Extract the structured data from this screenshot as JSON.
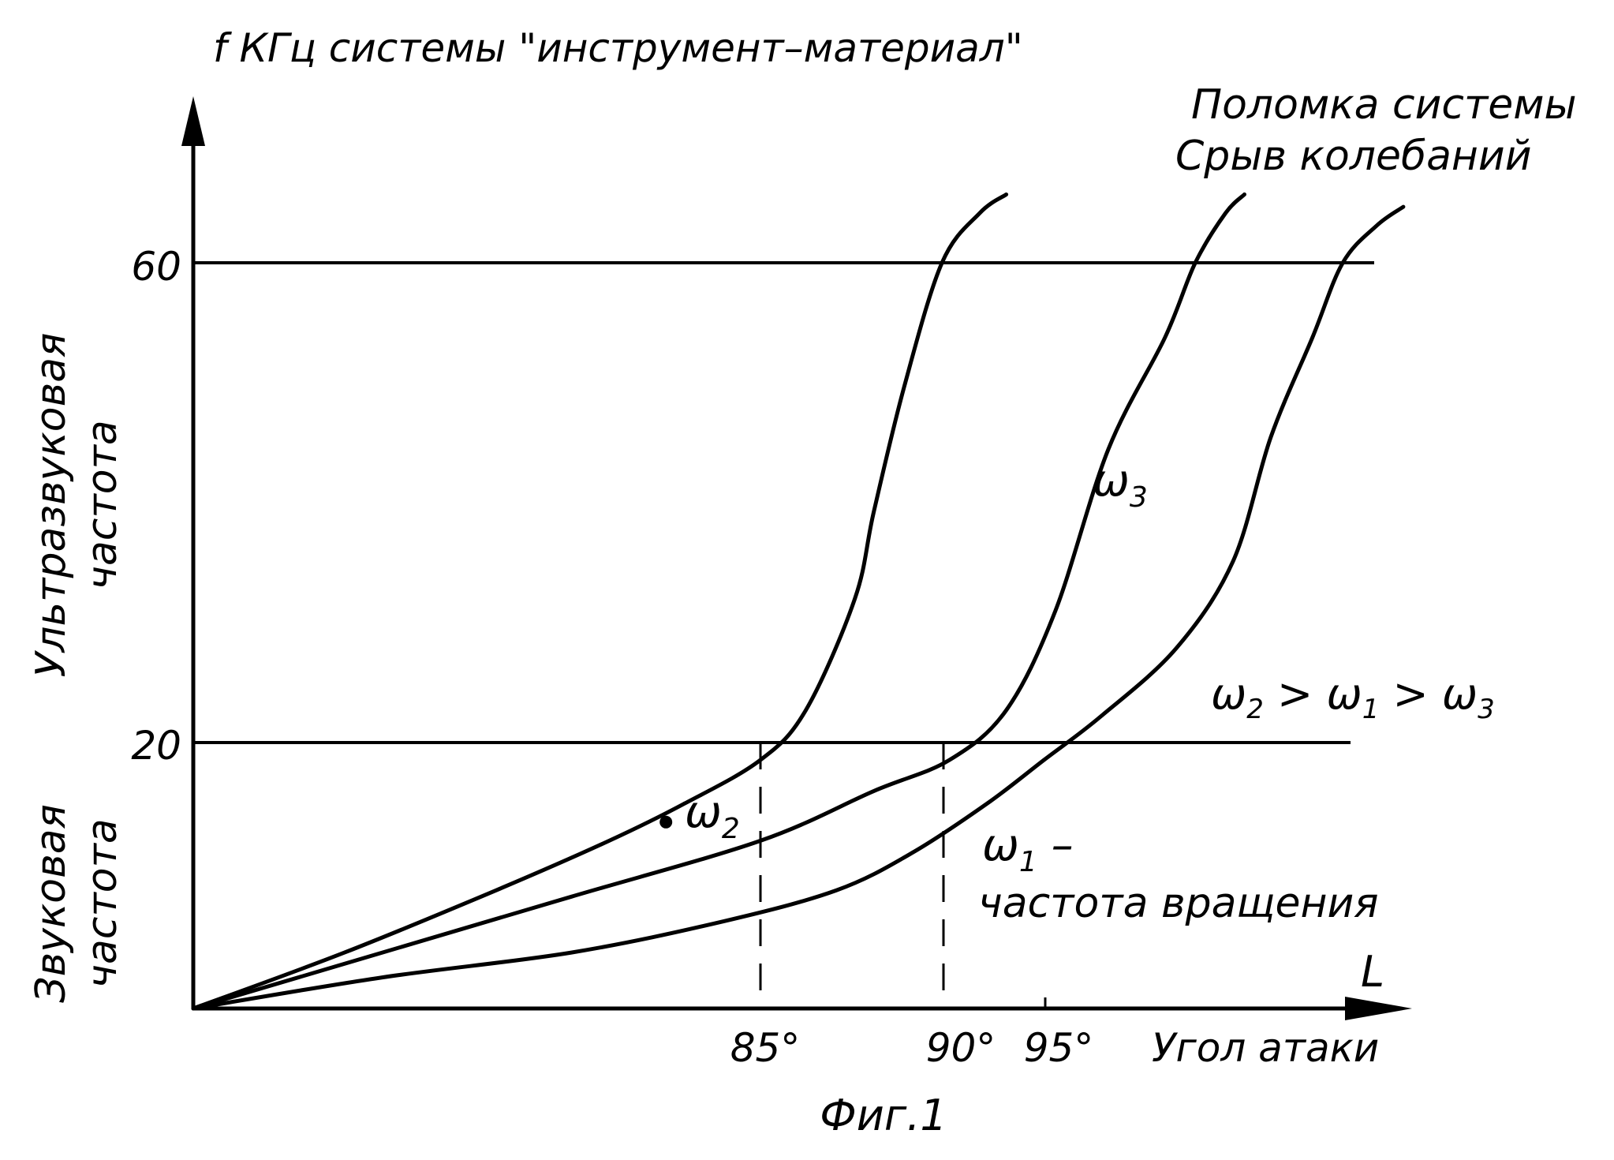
{
  "chart_data": {
    "type": "line",
    "title": "f  КГц системы \"инструмент–материал\"",
    "ylabel_symbol": "f",
    "xlabel": "Угол атаки",
    "xsymbol": "L",
    "figure_caption": "Фиг.1",
    "y_ticks": [
      "20",
      "60"
    ],
    "x_ticks": [
      "85°",
      "90°",
      "95°"
    ],
    "y_region_labels": [
      {
        "line1": "Звуковая",
        "line2": "частота"
      },
      {
        "line1": "Ультразвуковая",
        "line2": "частота"
      }
    ],
    "xlim": [
      70,
      104
    ],
    "ylim": [
      0,
      75
    ],
    "reference_lines_y": [
      20,
      60
    ],
    "series": [
      {
        "name": "ω2",
        "label": "ω",
        "subscript": "2",
        "marker_point": {
          "x": 82.5,
          "y": 15
        },
        "x": [
          70,
          74,
          78,
          81,
          83,
          85,
          86.2,
          87.5,
          88,
          88.8,
          89.8,
          90.8,
          91.5
        ],
        "y": [
          0,
          4.5,
          9.5,
          13.5,
          16.5,
          20,
          24,
          33,
          40,
          50,
          60,
          64,
          65.5
        ]
      },
      {
        "name": "ω3",
        "label": "ω",
        "subscript": "3",
        "x": [
          70,
          75,
          80,
          85,
          88,
          90,
          91.5,
          92.8,
          94.2,
          95.7,
          96.5,
          97.3,
          97.8
        ],
        "y": [
          0,
          4.5,
          9,
          13.5,
          17.5,
          20,
          24,
          32,
          45,
          54,
          60,
          64,
          65.5
        ]
      },
      {
        "name": "ω1 – частота вращения",
        "label": "ω",
        "subscript": "1",
        "suffix": " –",
        "desc": "частота вращения",
        "x": [
          70,
          75,
          80,
          84,
          87,
          89,
          91,
          92.5,
          94,
          96,
          97.5,
          98.5,
          99.6,
          100.4,
          101.3,
          102
        ],
        "y": [
          0,
          2.5,
          4.5,
          7,
          9.5,
          12.5,
          16.5,
          20,
          23.5,
          29,
          36,
          46,
          54,
          60,
          63,
          64.5
        ]
      }
    ],
    "annotations": [
      {
        "id": "breakdown",
        "line1": "Поломка системы",
        "line2": "Срыв колебаний"
      },
      {
        "id": "inequality",
        "parts": [
          "ω",
          "2",
          " > ",
          "ω",
          "1",
          " > ",
          "ω",
          "3"
        ]
      }
    ],
    "grid": false,
    "legend": "none"
  }
}
